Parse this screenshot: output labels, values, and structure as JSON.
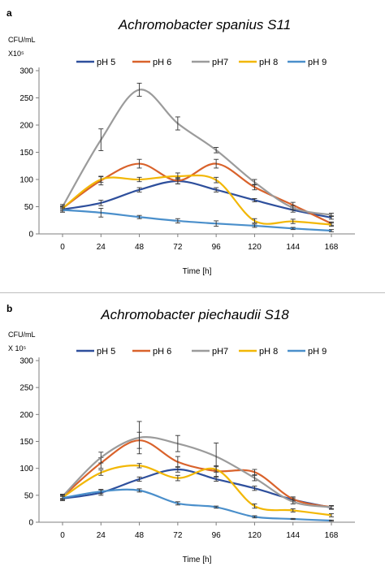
{
  "colors": {
    "pH5": "#2E4F9C",
    "pH6": "#D9622B",
    "pH7": "#9B9B9B",
    "pH8": "#F2B705",
    "pH9": "#4A8FCB"
  },
  "chart_data": [
    {
      "type": "line",
      "panel_letter": "a",
      "title": "Achromobacter spanius S11",
      "ylabel_line1": "CFU/mL",
      "ylabel_line2": "X10⁵",
      "xlabel": "Time [h]",
      "x": [
        0,
        24,
        48,
        72,
        96,
        120,
        144,
        168
      ],
      "ylim": [
        0,
        300
      ],
      "yticks": [
        0,
        50,
        100,
        150,
        200,
        250,
        300
      ],
      "legend_position": "top",
      "series": [
        {
          "name": "pH 5",
          "color": "#2E4F9C",
          "values": [
            45,
            57,
            81,
            97,
            81,
            62,
            44,
            30
          ],
          "errors": [
            5,
            5,
            4,
            5,
            4,
            3,
            4,
            3
          ]
        },
        {
          "name": "pH 6",
          "color": "#D9622B",
          "values": [
            47,
            98,
            129,
            98,
            129,
            86,
            53,
            19
          ],
          "errors": [
            4,
            8,
            8,
            6,
            8,
            5,
            5,
            3
          ]
        },
        {
          "name": "pH7",
          "color": "#9B9B9B",
          "values": [
            50,
            173,
            265,
            203,
            154,
            95,
            48,
            35
          ],
          "errors": [
            4,
            20,
            12,
            12,
            5,
            5,
            4,
            3
          ]
        },
        {
          "name": "pH 8",
          "color": "#F2B705",
          "values": [
            47,
            100,
            100,
            106,
            99,
            24,
            23,
            17
          ],
          "errors": [
            4,
            5,
            4,
            6,
            5,
            4,
            4,
            3
          ]
        },
        {
          "name": "pH 9",
          "color": "#4A8FCB",
          "values": [
            44,
            39,
            31,
            24,
            19,
            15,
            10,
            6
          ],
          "errors": [
            4,
            8,
            3,
            4,
            5,
            3,
            2,
            2
          ]
        }
      ]
    },
    {
      "type": "line",
      "panel_letter": "b",
      "title": "Achromobacter piechaudii  S18",
      "ylabel_line1": "CFU/mL",
      "ylabel_line2": "X 10⁵",
      "xlabel": "Time [h]",
      "x": [
        0,
        24,
        48,
        72,
        96,
        120,
        144,
        168
      ],
      "ylim": [
        0,
        300
      ],
      "yticks": [
        0,
        50,
        100,
        150,
        200,
        250,
        300
      ],
      "legend_position": "top",
      "series": [
        {
          "name": "pH 5",
          "color": "#2E4F9C",
          "values": [
            44,
            55,
            80,
            98,
            80,
            63,
            42,
            27
          ],
          "errors": [
            4,
            5,
            4,
            5,
            4,
            4,
            3,
            3
          ]
        },
        {
          "name": "pH 6",
          "color": "#D9622B",
          "values": [
            47,
            110,
            152,
            112,
            95,
            93,
            43,
            28
          ],
          "errors": [
            4,
            10,
            15,
            10,
            10,
            5,
            4,
            3
          ]
        },
        {
          "name": "pH7",
          "color": "#9B9B9B",
          "values": [
            48,
            120,
            157,
            146,
            122,
            82,
            38,
            28
          ],
          "errors": [
            4,
            10,
            30,
            15,
            25,
            5,
            4,
            3
          ]
        },
        {
          "name": "pH 8",
          "color": "#F2B705",
          "values": [
            46,
            92,
            105,
            82,
            98,
            30,
            22,
            13
          ],
          "errors": [
            4,
            5,
            4,
            5,
            5,
            4,
            3,
            3
          ]
        },
        {
          "name": "pH 9",
          "color": "#4A8FCB",
          "values": [
            45,
            57,
            59,
            35,
            28,
            10,
            6,
            3
          ],
          "errors": [
            3,
            4,
            3,
            3,
            2,
            2,
            1,
            1
          ]
        }
      ]
    }
  ]
}
